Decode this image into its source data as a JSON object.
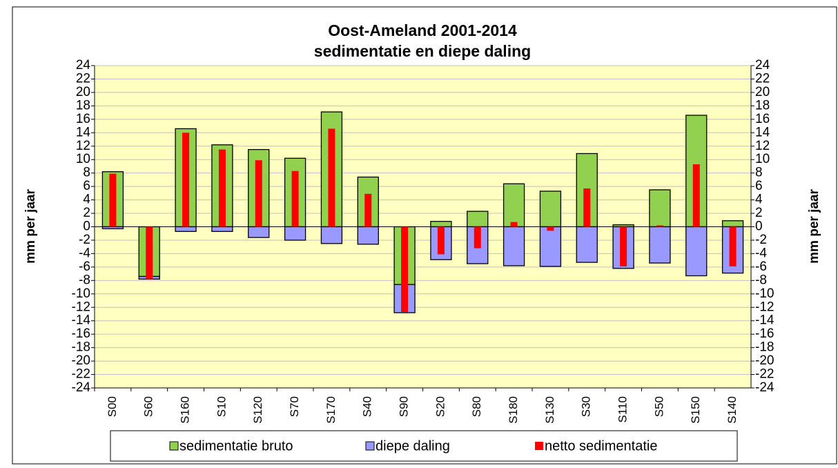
{
  "chart_data": {
    "type": "bar",
    "stacked": true,
    "title": "Oost-Ameland  2001-2014",
    "subtitle": "sedimentatie en diepe daling",
    "ylabel": "mm per jaar",
    "y2label": "mm per jaar",
    "categories": [
      "S00",
      "S60",
      "S160",
      "S10",
      "S120",
      "S70",
      "S170",
      "S40",
      "S90",
      "S20",
      "S80",
      "S180",
      "S130",
      "S30",
      "S110",
      "S50",
      "S150",
      "S140"
    ],
    "series": [
      {
        "name": "sedimentatie bruto",
        "color": "#92d050",
        "values": [
          8.2,
          -7.4,
          14.6,
          12.2,
          11.5,
          10.2,
          17.1,
          7.4,
          -8.6,
          0.8,
          2.3,
          6.4,
          5.3,
          10.9,
          0.3,
          5.5,
          16.6,
          0.9
        ]
      },
      {
        "name": "diepe daling",
        "color": "#9999ff",
        "values": [
          -0.3,
          -0.4,
          -0.7,
          -0.7,
          -1.6,
          -2.0,
          -2.5,
          -2.6,
          -4.2,
          -4.9,
          -5.5,
          -5.8,
          -5.9,
          -5.3,
          -6.2,
          -5.4,
          -7.3,
          -6.9
        ]
      },
      {
        "name": "netto sedimentatie",
        "color": "#ff0000",
        "axis": "y2",
        "values": [
          7.9,
          -7.8,
          14.0,
          11.5,
          9.9,
          8.3,
          14.6,
          4.9,
          -12.7,
          -4.1,
          -3.2,
          0.7,
          -0.6,
          5.7,
          -5.9,
          0.2,
          9.3,
          -5.9
        ]
      }
    ],
    "ylim": [
      -24,
      24
    ],
    "yticks": [
      -24,
      -22,
      -20,
      -18,
      -16,
      -14,
      -12,
      -10,
      -8,
      -6,
      -4,
      -2,
      0,
      2,
      4,
      6,
      8,
      10,
      12,
      14,
      16,
      18,
      20,
      22,
      24
    ],
    "y2lim": [
      -24,
      24
    ],
    "y2ticks": [
      -24,
      -22,
      -20,
      -18,
      -16,
      -14,
      -12,
      -10,
      -8,
      -6,
      -4,
      -2,
      0,
      2,
      4,
      6,
      8,
      10,
      12,
      14,
      16,
      18,
      20,
      22,
      24
    ],
    "grid": true,
    "legend": "bottom"
  }
}
